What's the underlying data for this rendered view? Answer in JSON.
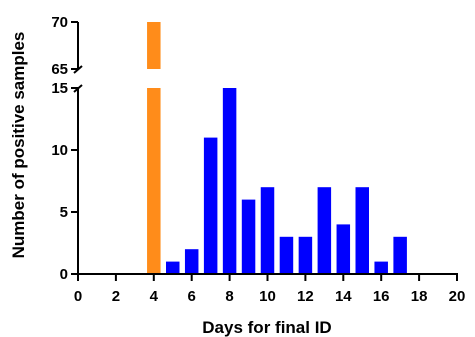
{
  "chart_data": {
    "type": "bar",
    "xlabel": "Days for final ID",
    "ylabel": "Number of positive samples",
    "x_ticks": [
      0,
      2,
      4,
      6,
      8,
      10,
      12,
      14,
      16,
      18,
      20
    ],
    "xlim": [
      0,
      20
    ],
    "y_axis_broken": true,
    "y_segments": [
      {
        "name": "lower",
        "ylim": [
          0,
          15
        ],
        "ticks": [
          0,
          5,
          10,
          15
        ]
      },
      {
        "name": "upper",
        "ylim": [
          65,
          70
        ],
        "ticks": [
          65,
          70
        ]
      }
    ],
    "series": [
      {
        "color": "#FF8C1A",
        "points": [
          {
            "x": 4,
            "y": 70
          }
        ]
      },
      {
        "color": "#0000FF",
        "points": [
          {
            "x": 5,
            "y": 1
          },
          {
            "x": 6,
            "y": 2
          },
          {
            "x": 7,
            "y": 11
          },
          {
            "x": 8,
            "y": 15
          },
          {
            "x": 9,
            "y": 6
          },
          {
            "x": 10,
            "y": 7
          },
          {
            "x": 11,
            "y": 3
          },
          {
            "x": 12,
            "y": 3
          },
          {
            "x": 13,
            "y": 7
          },
          {
            "x": 14,
            "y": 4
          },
          {
            "x": 15,
            "y": 7
          },
          {
            "x": 16,
            "y": 1
          },
          {
            "x": 17,
            "y": 3
          }
        ]
      }
    ]
  }
}
